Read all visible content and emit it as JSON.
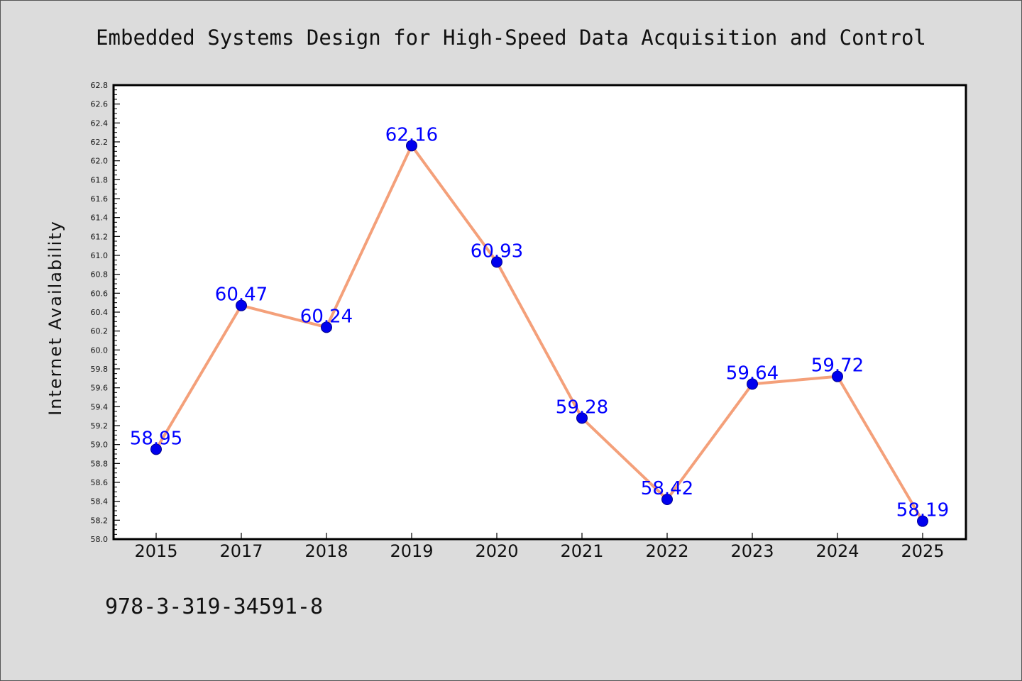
{
  "chart_data": {
    "type": "line",
    "title": "Embedded Systems Design for High-Speed Data Acquisition and Control",
    "xlabel": "",
    "ylabel": "Internet Availability",
    "categories": [
      "2015",
      "2017",
      "2018",
      "2019",
      "2020",
      "2021",
      "2022",
      "2023",
      "2024",
      "2025"
    ],
    "series": [
      {
        "values": [
          58.95,
          60.47,
          60.24,
          62.16,
          60.93,
          59.28,
          58.42,
          59.64,
          59.72,
          58.19
        ]
      }
    ],
    "data_labels": [
      "58.95",
      "60.47",
      "60.24",
      "62.16",
      "60.93",
      "59.28",
      "58.42",
      "59.64",
      "59.72",
      "58.19"
    ],
    "ylim": [
      58.0,
      62.8
    ],
    "yticks": [
      "58.0",
      "58.2",
      "58.4",
      "58.6",
      "58.8",
      "59.0",
      "59.2",
      "59.4",
      "59.6",
      "59.8",
      "60.0",
      "60.2",
      "60.4",
      "60.6",
      "60.8",
      "61.0",
      "61.2",
      "61.4",
      "61.6",
      "61.8",
      "62.0",
      "62.2",
      "62.4",
      "62.6",
      "62.8"
    ],
    "grid": false,
    "legend": "none",
    "colors": {
      "line": "#f4a07a",
      "marker": "#0000ee",
      "data_label": "#0000ff",
      "background": "#dcdcdc",
      "plot_area": "#ffffff"
    }
  },
  "footer": {
    "isbn": "978-3-319-34591-8"
  }
}
